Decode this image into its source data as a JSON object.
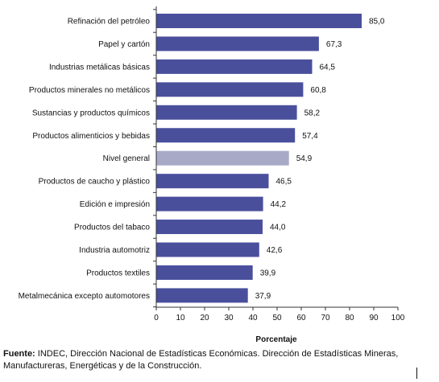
{
  "chart_data": {
    "type": "bar",
    "orientation": "horizontal",
    "title": "",
    "xlabel": "Porcentaje",
    "ylabel": "",
    "xlim": [
      0,
      100
    ],
    "xticks": [
      0,
      10,
      20,
      30,
      40,
      50,
      60,
      70,
      80,
      90,
      100
    ],
    "grid": false,
    "legend": "none",
    "bar_color": "#4a4f9c",
    "highlight_color": "#a7a9c7",
    "highlight_category": "Nivel general",
    "categories": [
      "Refinación del petróleo",
      "Papel y cartón",
      "Industrias metálicas básicas",
      "Productos minerales no metálicos",
      "Sustancias y productos químicos",
      "Productos alimenticios y bebidas",
      "Nivel general",
      "Productos de caucho y plástico",
      "Edición e impresión",
      "Productos del tabaco",
      "Industria automotriz",
      "Productos textiles",
      "Metalmecánica excepto automotores"
    ],
    "values": [
      85.0,
      67.3,
      64.5,
      60.8,
      58.2,
      57.4,
      54.9,
      46.5,
      44.2,
      44.0,
      42.6,
      39.9,
      37.9
    ],
    "value_labels": [
      "85,0",
      "67,3",
      "64,5",
      "60,8",
      "58,2",
      "57,4",
      "54,9",
      "46,5",
      "44,2",
      "44,0",
      "42,6",
      "39,9",
      "37,9"
    ]
  },
  "source": {
    "label": "Fuente:",
    "text": "INDEC, Dirección Nacional de Estadísticas Económicas. Dirección de Estadísticas Mineras, Manufactureras, Energéticas y de la Construcción."
  }
}
